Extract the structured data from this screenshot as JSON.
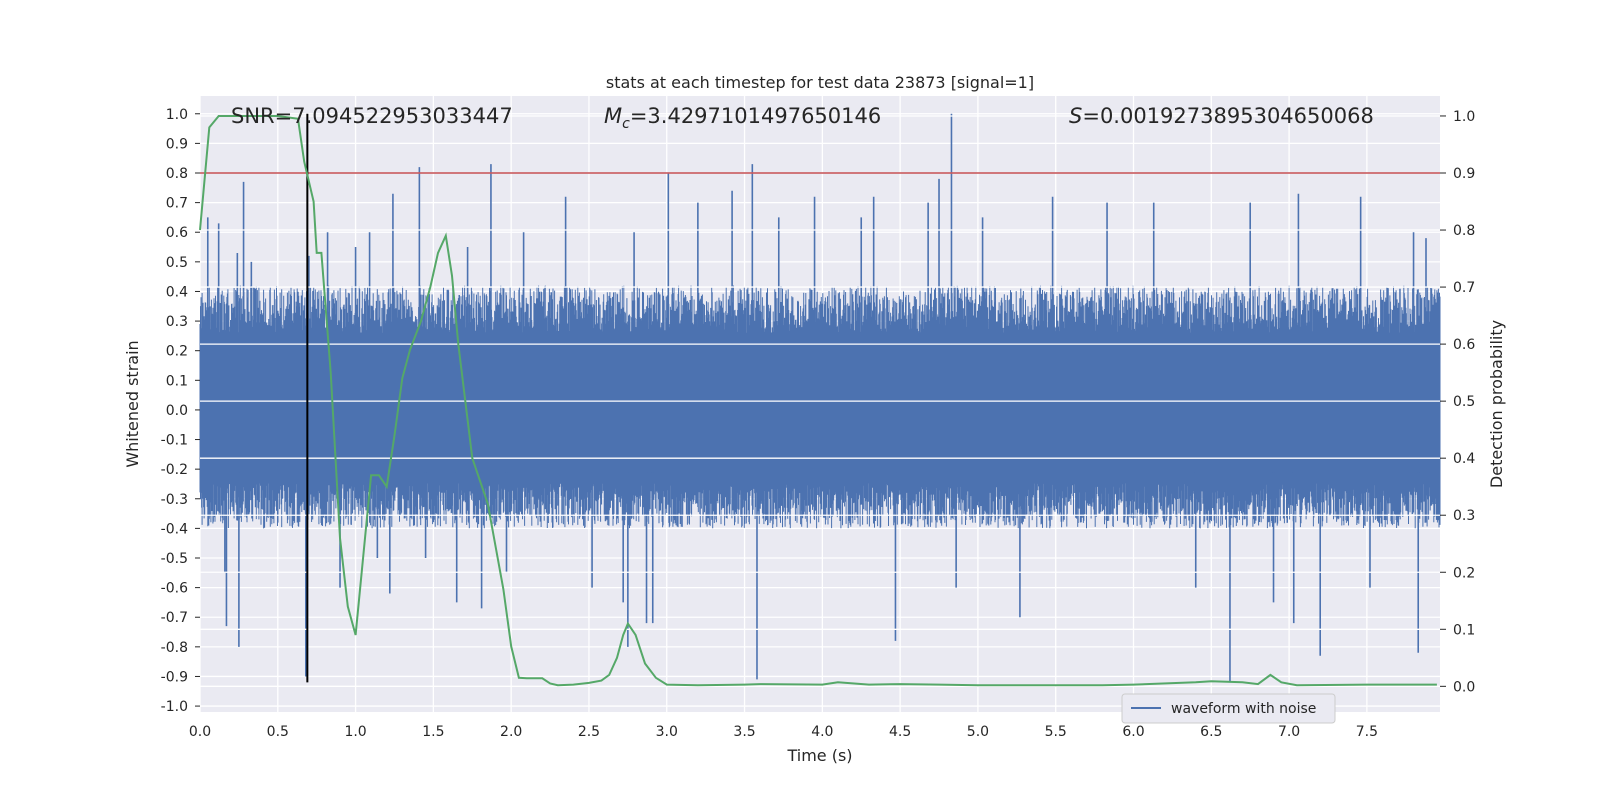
{
  "chart_data": {
    "type": "line",
    "title": "stats at each timestep for test data 23873 [signal=1]",
    "xlabel": "Time (s)",
    "ylabel": "Whitened strain",
    "y2label": "Detection probability",
    "xlim": [
      0.0,
      7.97
    ],
    "ylim": [
      -1.02,
      1.06
    ],
    "y2lim": [
      -0.045,
      1.035
    ],
    "x_ticks": [
      "0.0",
      "0.5",
      "1.0",
      "1.5",
      "2.0",
      "2.5",
      "3.0",
      "3.5",
      "4.0",
      "4.5",
      "5.0",
      "5.5",
      "6.0",
      "6.5",
      "7.0",
      "7.5"
    ],
    "y_ticks": [
      "-1.0",
      "-0.9",
      "-0.8",
      "-0.7",
      "-0.6",
      "-0.5",
      "-0.4",
      "-0.3",
      "-0.2",
      "-0.1",
      "0.0",
      "0.1",
      "0.2",
      "0.3",
      "0.4",
      "0.5",
      "0.6",
      "0.7",
      "0.8",
      "0.9",
      "1.0"
    ],
    "y2_ticks": [
      "0.0",
      "0.1",
      "0.2",
      "0.3",
      "0.4",
      "0.5",
      "0.6",
      "0.7",
      "0.8",
      "0.9",
      "1.0"
    ],
    "grid": true,
    "legend": {
      "placement": "lower-right",
      "entries": [
        "waveform with noise"
      ]
    },
    "annotations": {
      "snr": "SNR=7.094522953033447",
      "mc_symbol": "M",
      "mc_sub": "c",
      "mc_value": "=3.4297101497650146",
      "s_symbol": "S",
      "s_value": "=0.0019273895304650068"
    },
    "threshold": {
      "axis": "right",
      "value": 0.9,
      "color": "#c44e52"
    },
    "vline": {
      "x": 0.69,
      "color": "#000000"
    },
    "series": [
      {
        "name": "waveform with noise",
        "axis": "left",
        "color": "#4c72b0",
        "duration": 7.97,
        "envelope_top": 0.42,
        "envelope_bottom": -0.4,
        "spikes": [
          [
            0.05,
            0.65
          ],
          [
            0.12,
            0.63
          ],
          [
            0.16,
            -0.55
          ],
          [
            0.17,
            -0.73
          ],
          [
            0.24,
            0.53
          ],
          [
            0.25,
            -0.8
          ],
          [
            0.28,
            0.77
          ],
          [
            0.33,
            0.5
          ],
          [
            0.68,
            -0.9
          ],
          [
            0.7,
            0.52
          ],
          [
            0.82,
            0.6
          ],
          [
            0.9,
            -0.6
          ],
          [
            1.0,
            0.55
          ],
          [
            1.09,
            0.6
          ],
          [
            1.14,
            -0.5
          ],
          [
            1.22,
            -0.62
          ],
          [
            1.24,
            0.73
          ],
          [
            1.41,
            0.82
          ],
          [
            1.45,
            -0.5
          ],
          [
            1.65,
            -0.65
          ],
          [
            1.72,
            0.55
          ],
          [
            1.81,
            -0.67
          ],
          [
            1.87,
            0.83
          ],
          [
            1.97,
            -0.55
          ],
          [
            2.08,
            0.6
          ],
          [
            2.35,
            0.72
          ],
          [
            2.52,
            -0.6
          ],
          [
            2.72,
            -0.65
          ],
          [
            2.75,
            -0.8
          ],
          [
            2.79,
            0.6
          ],
          [
            2.87,
            -0.72
          ],
          [
            2.91,
            -0.72
          ],
          [
            3.01,
            0.8
          ],
          [
            3.2,
            0.7
          ],
          [
            3.42,
            0.74
          ],
          [
            3.55,
            0.83
          ],
          [
            3.58,
            -0.91
          ],
          [
            3.72,
            0.65
          ],
          [
            3.95,
            0.72
          ],
          [
            4.25,
            0.65
          ],
          [
            4.33,
            0.72
          ],
          [
            4.47,
            -0.78
          ],
          [
            4.68,
            0.7
          ],
          [
            4.75,
            0.78
          ],
          [
            4.83,
            1.0
          ],
          [
            4.86,
            -0.6
          ],
          [
            5.03,
            0.65
          ],
          [
            5.27,
            -0.7
          ],
          [
            5.48,
            0.72
          ],
          [
            5.83,
            0.7
          ],
          [
            6.13,
            0.7
          ],
          [
            6.4,
            -0.6
          ],
          [
            6.62,
            -0.92
          ],
          [
            6.75,
            0.7
          ],
          [
            6.9,
            -0.65
          ],
          [
            7.03,
            -0.72
          ],
          [
            7.06,
            0.73
          ],
          [
            7.2,
            -0.83
          ],
          [
            7.46,
            0.72
          ],
          [
            7.52,
            -0.6
          ],
          [
            7.8,
            0.6
          ],
          [
            7.83,
            -0.82
          ],
          [
            7.88,
            0.58
          ]
        ]
      },
      {
        "name": "",
        "axis": "right",
        "color": "#55a868",
        "x": [
          0.0,
          0.06,
          0.12,
          0.3,
          0.5,
          0.63,
          0.67,
          0.73,
          0.75,
          0.78,
          0.84,
          0.9,
          0.95,
          1.0,
          1.1,
          1.15,
          1.2,
          1.25,
          1.3,
          1.35,
          1.42,
          1.48,
          1.53,
          1.58,
          1.62,
          1.66,
          1.75,
          1.85,
          1.95,
          2.0,
          2.05,
          2.1,
          2.2,
          2.25,
          2.3,
          2.4,
          2.5,
          2.58,
          2.63,
          2.68,
          2.72,
          2.75,
          2.8,
          2.86,
          2.93,
          3.0,
          3.2,
          3.5,
          3.6,
          4.0,
          4.1,
          4.3,
          4.5,
          4.75,
          5.0,
          5.5,
          5.8,
          6.0,
          6.4,
          6.5,
          6.7,
          6.8,
          6.88,
          6.95,
          7.05,
          7.5,
          7.95
        ],
        "y": [
          0.8,
          0.98,
          1.0,
          1.0,
          1.0,
          0.995,
          0.92,
          0.85,
          0.76,
          0.76,
          0.55,
          0.26,
          0.14,
          0.09,
          0.37,
          0.37,
          0.35,
          0.44,
          0.54,
          0.59,
          0.64,
          0.7,
          0.76,
          0.79,
          0.72,
          0.6,
          0.4,
          0.32,
          0.17,
          0.07,
          0.015,
          0.014,
          0.014,
          0.005,
          0.002,
          0.003,
          0.006,
          0.01,
          0.02,
          0.05,
          0.09,
          0.11,
          0.09,
          0.04,
          0.015,
          0.003,
          0.002,
          0.003,
          0.004,
          0.003,
          0.007,
          0.003,
          0.004,
          0.003,
          0.002,
          0.002,
          0.002,
          0.003,
          0.007,
          0.009,
          0.007,
          0.004,
          0.02,
          0.007,
          0.002,
          0.003,
          0.003
        ]
      }
    ]
  }
}
